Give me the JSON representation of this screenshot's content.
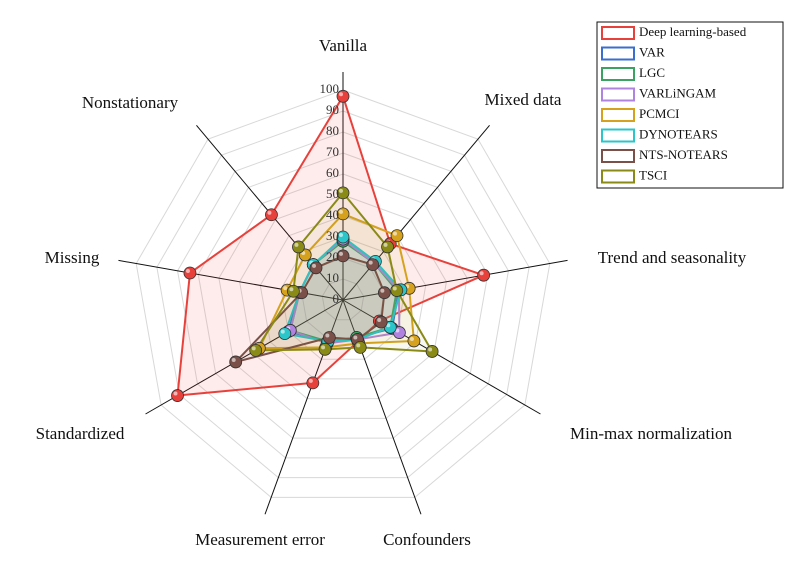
{
  "chart_data": {
    "type": "radar",
    "categories": [
      "Vanilla",
      "Mixed data",
      "Trend and seasonality",
      "Min-max normalization",
      "Confounders",
      "Measurement error",
      "Standardized",
      "Missing",
      "Nonstationary"
    ],
    "ylim": [
      0,
      100
    ],
    "yticks": [
      0,
      10,
      20,
      30,
      40,
      50,
      60,
      70,
      80,
      90,
      100
    ],
    "grid": true,
    "series": [
      {
        "name": "Deep learning-based",
        "color": "#e8413c",
        "values": [
          97,
          35,
          68,
          20,
          21,
          42,
          91,
          74,
          53
        ]
      },
      {
        "name": "VAR",
        "color": "#3a6fcf",
        "values": [
          29,
          23,
          27,
          27,
          19,
          21,
          30,
          21,
          22
        ]
      },
      {
        "name": "LGC",
        "color": "#3aa361",
        "values": [
          28,
          23,
          26,
          26,
          19,
          21,
          29,
          21,
          22
        ]
      },
      {
        "name": "VARLiNGAM",
        "color": "#b183e0",
        "values": [
          29,
          23,
          27,
          31,
          20,
          22,
          29,
          21,
          22
        ]
      },
      {
        "name": "PCMCI",
        "color": "#d6a21e",
        "values": [
          41,
          40,
          32,
          39,
          22,
          24,
          46,
          27,
          28
        ]
      },
      {
        "name": "DYNOTEARS",
        "color": "#2bc6c9",
        "values": [
          30,
          24,
          28,
          26,
          20,
          21,
          32,
          21,
          22
        ]
      },
      {
        "name": "NTS-NOTEARS",
        "color": "#7a5048",
        "values": [
          21,
          22,
          20,
          21,
          20,
          19,
          59,
          20,
          20
        ]
      },
      {
        "name": "TSCI",
        "color": "#8a8a16",
        "values": [
          51,
          33,
          26,
          49,
          24,
          25,
          48,
          24,
          33
        ]
      }
    ]
  }
}
